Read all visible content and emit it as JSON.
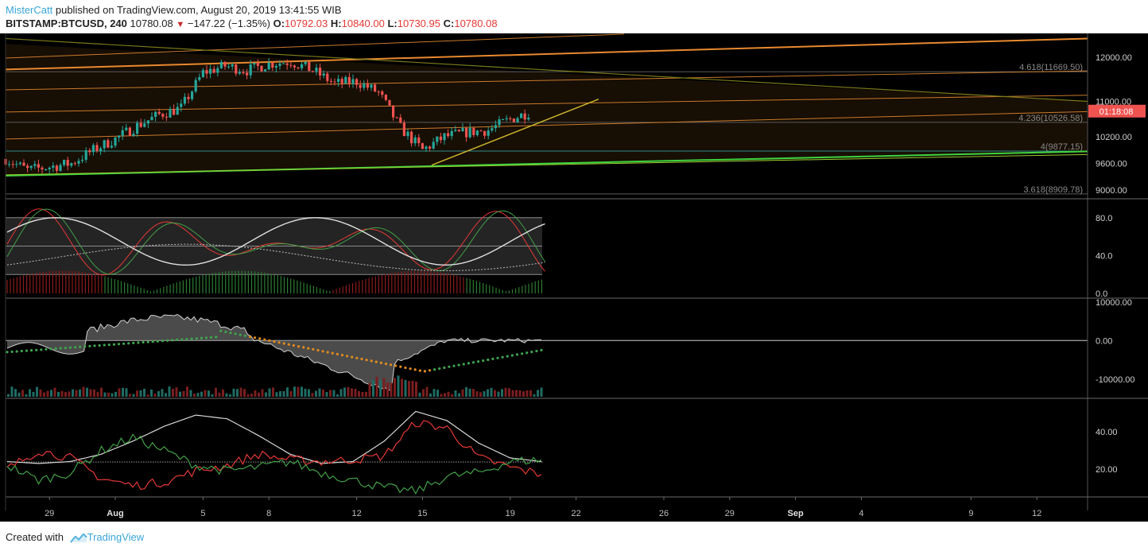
{
  "header": {
    "author": "MisterCatt",
    "published": "published on TradingView.com, August 20, 2019 13:41:55 WIB",
    "symbol": "BITSTAMP:BTCUSD, 240",
    "last": "10780.08",
    "change": "−147.22 (−1.35%)",
    "o_label": "O:",
    "o_val": "10792.03",
    "h_label": "H:",
    "h_val": "10840.00",
    "l_label": "L:",
    "l_val": "10730.95",
    "c_label": "C:",
    "c_val": "10780.08"
  },
  "footer": {
    "created": "Created with",
    "brand": "TradingView"
  },
  "colors": {
    "up": "#26a69a",
    "down": "#ef5350",
    "fib": "#c97a2b",
    "channel": "#e8892f",
    "support": "#3fd43f",
    "trend": "#c9b22c",
    "price_tag": "#ef5350"
  },
  "chart_data": [
    {
      "type": "candlestick",
      "panel": "price",
      "ylim": [
        8800,
        12500
      ],
      "y_ticks": [
        "12000.00",
        "11000.00",
        "10200.00",
        "9600.00",
        "9000.00"
      ],
      "x_ticks": [
        "29",
        "Aug",
        "5",
        "8",
        "12",
        "15",
        "19",
        "22",
        "26",
        "29",
        "Sep",
        "4",
        "9",
        "12"
      ],
      "current_price_tag": "01:18:08",
      "fib_levels": [
        {
          "label": "4.618(11669.50)",
          "value": 11669.5
        },
        {
          "label": "4.236(10526.58)",
          "value": 10526.58
        },
        {
          "label": "4(9877.15)",
          "value": 9877.15
        },
        {
          "label": "3.618(8909.78)",
          "value": 8909.78
        }
      ],
      "close_path": [
        [
          "Jul 27",
          9700
        ],
        [
          "Jul 28",
          9450
        ],
        [
          "Jul 29",
          9520
        ],
        [
          "Jul 30",
          9600
        ],
        [
          "Jul 31",
          9900
        ],
        [
          "Aug 1",
          10150
        ],
        [
          "Aug 2",
          10450
        ],
        [
          "Aug 3",
          10700
        ],
        [
          "Aug 4",
          10850
        ],
        [
          "Aug 5",
          11650
        ],
        [
          "Aug 6",
          11800
        ],
        [
          "Aug 7",
          11700
        ],
        [
          "Aug 8",
          11850
        ],
        [
          "Aug 9",
          11900
        ],
        [
          "Aug 10",
          11700
        ],
        [
          "Aug 11",
          11400
        ],
        [
          "Aug 12",
          11450
        ],
        [
          "Aug 13",
          11200
        ],
        [
          "Aug 14",
          10400
        ],
        [
          "Aug 15",
          9900
        ],
        [
          "Aug 16",
          10200
        ],
        [
          "Aug 17",
          10300
        ],
        [
          "Aug 18",
          10350
        ],
        [
          "Aug 19",
          10600
        ],
        [
          "Aug 20",
          10780
        ]
      ]
    },
    {
      "type": "line",
      "panel": "oscillator",
      "ylim": [
        -5,
        100
      ],
      "y_ticks": [
        "80.0",
        "40.0",
        "0.0"
      ],
      "bands": [
        80,
        50,
        20
      ]
    },
    {
      "type": "area",
      "panel": "volume-flow",
      "ylim": [
        -15000,
        11000
      ],
      "y_ticks": [
        "10000.00",
        "0.00",
        "-10000.00"
      ]
    },
    {
      "type": "line",
      "panel": "dmi",
      "ylim": [
        5,
        58
      ],
      "y_ticks": [
        "40.00",
        "20.00"
      ],
      "series": [
        {
          "color": "#d8d8d8",
          "values": [
            24,
            23,
            24,
            28,
            35,
            43,
            49,
            47,
            38,
            28,
            23,
            24,
            35,
            51,
            46,
            34,
            26,
            24
          ]
        },
        {
          "color": "#e53935",
          "values": [
            20,
            30,
            26,
            15,
            11,
            13,
            19,
            22,
            28,
            25,
            24,
            25,
            27,
            45,
            42,
            26,
            21,
            17
          ]
        },
        {
          "color": "#43a047",
          "values": [
            22,
            14,
            18,
            30,
            37,
            30,
            22,
            19,
            21,
            24,
            18,
            14,
            10,
            8,
            16,
            18,
            24,
            25
          ]
        }
      ]
    }
  ]
}
